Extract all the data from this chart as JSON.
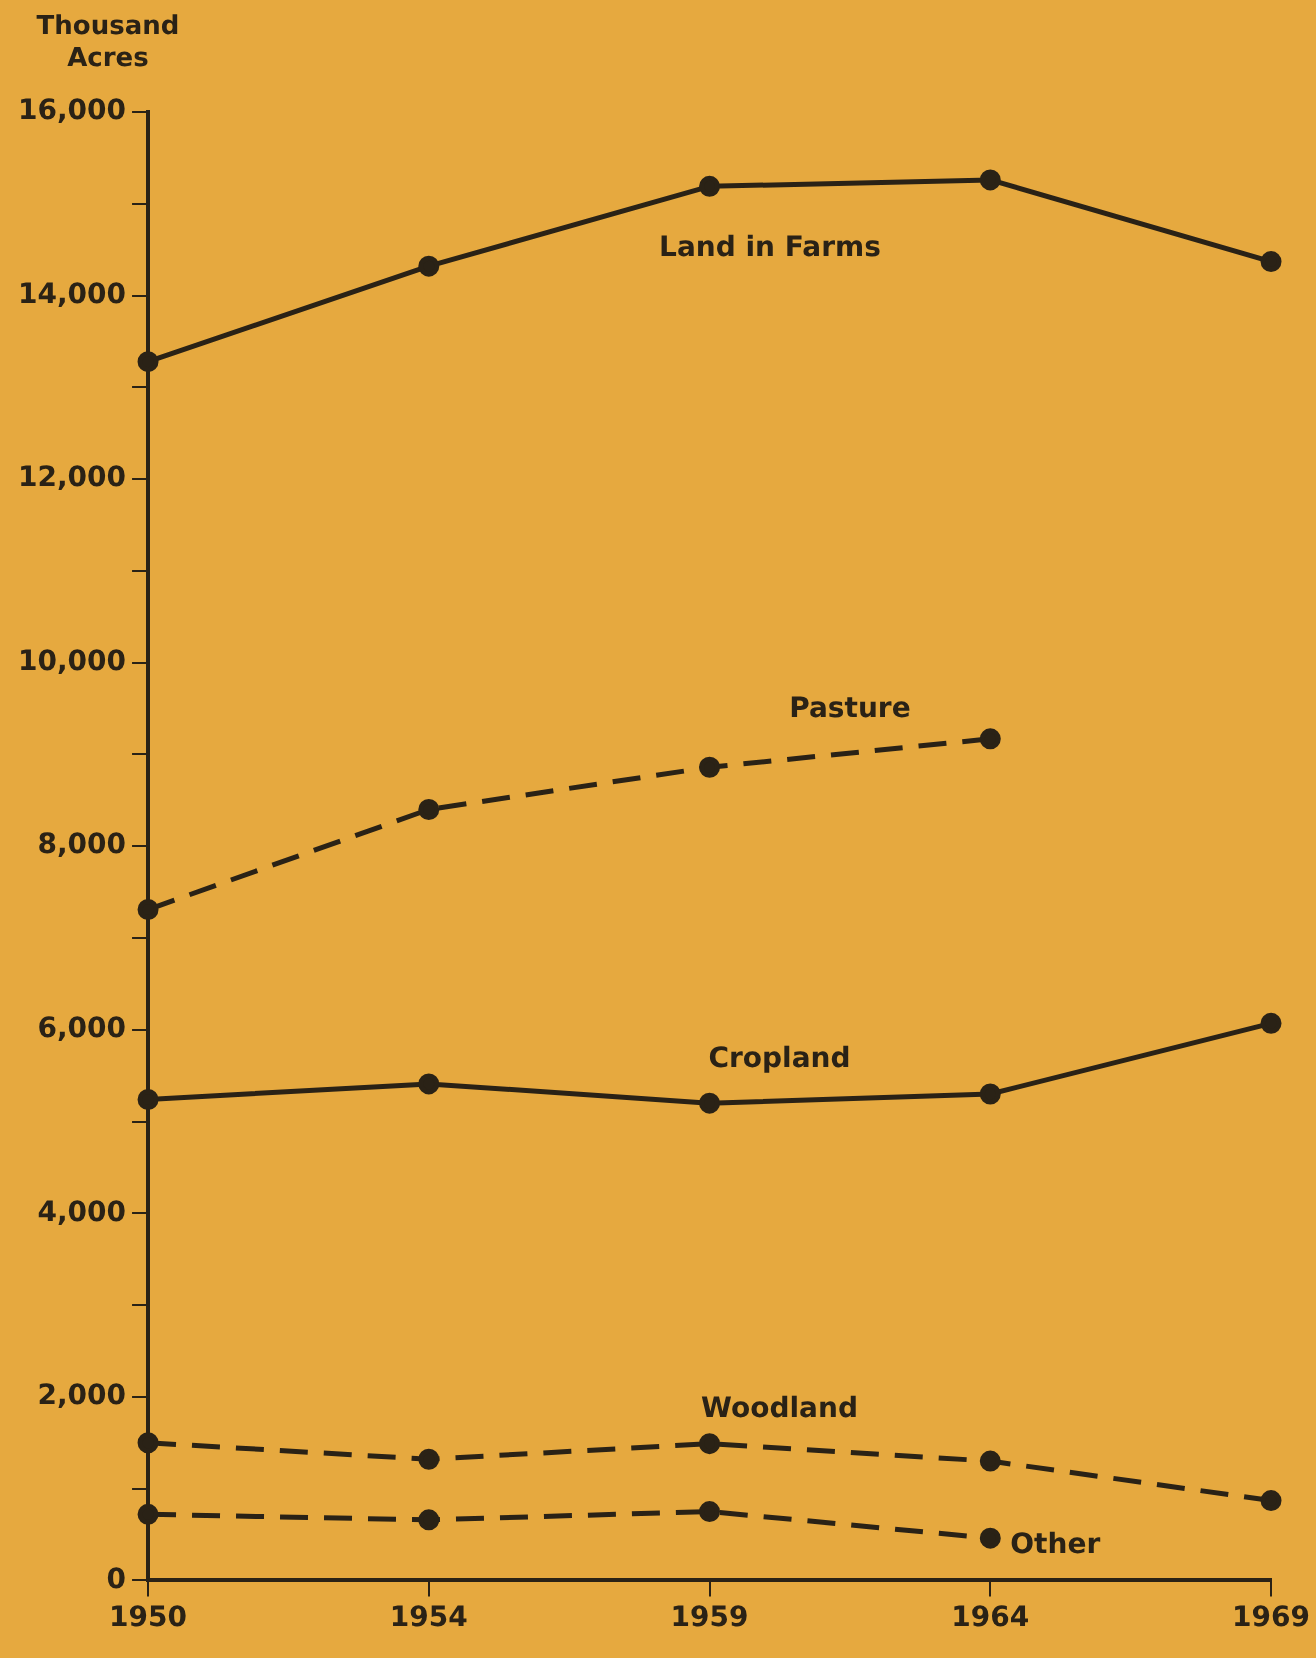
{
  "chart_data": {
    "type": "line",
    "ylabel": "Thousand Acres",
    "categories": [
      "1950",
      "1954",
      "1959",
      "1964",
      "1969"
    ],
    "series": [
      {
        "name": "Land in Farms",
        "color": "#2a2216",
        "line_style": "solid",
        "values": [
          13280,
          14320,
          15190,
          15260,
          14370
        ]
      },
      {
        "name": "Pasture",
        "color": "#2a2216",
        "line_style": "dashed",
        "values": [
          7310,
          8400,
          8860,
          9170,
          null
        ]
      },
      {
        "name": "Cropland",
        "color": "#2a2216",
        "line_style": "solid",
        "values": [
          5240,
          5410,
          5200,
          5300,
          6070
        ]
      },
      {
        "name": "Woodland",
        "color": "#2a2216",
        "line_style": "dashed",
        "values": [
          1500,
          1320,
          1490,
          1300,
          870
        ]
      },
      {
        "name": "Other",
        "color": "#2a2216",
        "line_style": "dashed",
        "values": [
          720,
          660,
          750,
          460,
          null
        ]
      }
    ],
    "ylim": [
      0,
      16000
    ],
    "yticks": [
      0,
      {
        "value": 1000,
        "label": null
      },
      {
        "value": 2000,
        "label": "2,000"
      },
      {
        "value": 3000,
        "label": null
      },
      {
        "value": 4000,
        "label": "4,000"
      },
      {
        "value": 5000,
        "label": null
      },
      {
        "value": 6000,
        "label": "6,000"
      },
      {
        "value": 7000,
        "label": null
      },
      {
        "value": 8000,
        "label": "8,000"
      },
      {
        "value": 9000,
        "label": null
      },
      {
        "value": 10000,
        "label": "10,000"
      },
      {
        "value": 11000,
        "label": null
      },
      {
        "value": 12000,
        "label": "12,000"
      },
      {
        "value": 13000,
        "label": null
      },
      {
        "value": 14000,
        "label": "14,000"
      },
      {
        "value": 15000,
        "label": null
      },
      {
        "value": 16000,
        "label": "16,000"
      }
    ],
    "marker": "circle",
    "grid": false,
    "legend": false
  }
}
